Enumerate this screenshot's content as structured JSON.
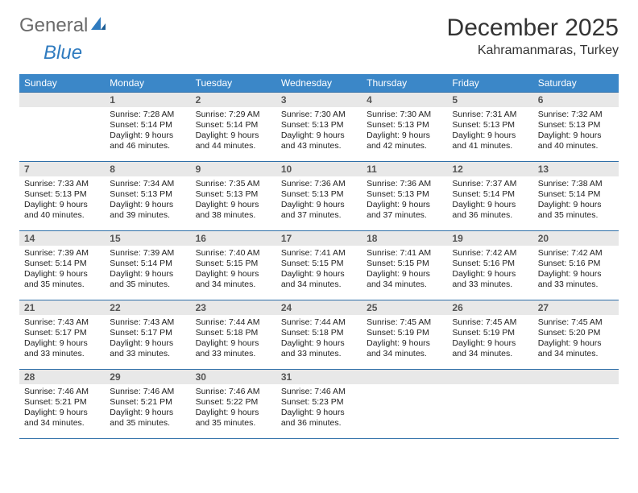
{
  "logo": {
    "general": "General",
    "blue": "Blue"
  },
  "title": "December 2025",
  "location": "Kahramanmaras, Turkey",
  "colors": {
    "header_bg": "#3b87c8",
    "header_text": "#ffffff",
    "daynum_bg": "#e8e8e8",
    "daynum_text": "#555555",
    "border": "#2f6fa8",
    "logo_blue": "#2f7bbf",
    "logo_gray": "#6b6b6b"
  },
  "weekdays": [
    "Sunday",
    "Monday",
    "Tuesday",
    "Wednesday",
    "Thursday",
    "Friday",
    "Saturday"
  ],
  "weeks": [
    [
      null,
      {
        "n": "1",
        "sr": "Sunrise: 7:28 AM",
        "ss": "Sunset: 5:14 PM",
        "dl": "Daylight: 9 hours and 46 minutes."
      },
      {
        "n": "2",
        "sr": "Sunrise: 7:29 AM",
        "ss": "Sunset: 5:14 PM",
        "dl": "Daylight: 9 hours and 44 minutes."
      },
      {
        "n": "3",
        "sr": "Sunrise: 7:30 AM",
        "ss": "Sunset: 5:13 PM",
        "dl": "Daylight: 9 hours and 43 minutes."
      },
      {
        "n": "4",
        "sr": "Sunrise: 7:30 AM",
        "ss": "Sunset: 5:13 PM",
        "dl": "Daylight: 9 hours and 42 minutes."
      },
      {
        "n": "5",
        "sr": "Sunrise: 7:31 AM",
        "ss": "Sunset: 5:13 PM",
        "dl": "Daylight: 9 hours and 41 minutes."
      },
      {
        "n": "6",
        "sr": "Sunrise: 7:32 AM",
        "ss": "Sunset: 5:13 PM",
        "dl": "Daylight: 9 hours and 40 minutes."
      }
    ],
    [
      {
        "n": "7",
        "sr": "Sunrise: 7:33 AM",
        "ss": "Sunset: 5:13 PM",
        "dl": "Daylight: 9 hours and 40 minutes."
      },
      {
        "n": "8",
        "sr": "Sunrise: 7:34 AM",
        "ss": "Sunset: 5:13 PM",
        "dl": "Daylight: 9 hours and 39 minutes."
      },
      {
        "n": "9",
        "sr": "Sunrise: 7:35 AM",
        "ss": "Sunset: 5:13 PM",
        "dl": "Daylight: 9 hours and 38 minutes."
      },
      {
        "n": "10",
        "sr": "Sunrise: 7:36 AM",
        "ss": "Sunset: 5:13 PM",
        "dl": "Daylight: 9 hours and 37 minutes."
      },
      {
        "n": "11",
        "sr": "Sunrise: 7:36 AM",
        "ss": "Sunset: 5:13 PM",
        "dl": "Daylight: 9 hours and 37 minutes."
      },
      {
        "n": "12",
        "sr": "Sunrise: 7:37 AM",
        "ss": "Sunset: 5:14 PM",
        "dl": "Daylight: 9 hours and 36 minutes."
      },
      {
        "n": "13",
        "sr": "Sunrise: 7:38 AM",
        "ss": "Sunset: 5:14 PM",
        "dl": "Daylight: 9 hours and 35 minutes."
      }
    ],
    [
      {
        "n": "14",
        "sr": "Sunrise: 7:39 AM",
        "ss": "Sunset: 5:14 PM",
        "dl": "Daylight: 9 hours and 35 minutes."
      },
      {
        "n": "15",
        "sr": "Sunrise: 7:39 AM",
        "ss": "Sunset: 5:14 PM",
        "dl": "Daylight: 9 hours and 35 minutes."
      },
      {
        "n": "16",
        "sr": "Sunrise: 7:40 AM",
        "ss": "Sunset: 5:15 PM",
        "dl": "Daylight: 9 hours and 34 minutes."
      },
      {
        "n": "17",
        "sr": "Sunrise: 7:41 AM",
        "ss": "Sunset: 5:15 PM",
        "dl": "Daylight: 9 hours and 34 minutes."
      },
      {
        "n": "18",
        "sr": "Sunrise: 7:41 AM",
        "ss": "Sunset: 5:15 PM",
        "dl": "Daylight: 9 hours and 34 minutes."
      },
      {
        "n": "19",
        "sr": "Sunrise: 7:42 AM",
        "ss": "Sunset: 5:16 PM",
        "dl": "Daylight: 9 hours and 33 minutes."
      },
      {
        "n": "20",
        "sr": "Sunrise: 7:42 AM",
        "ss": "Sunset: 5:16 PM",
        "dl": "Daylight: 9 hours and 33 minutes."
      }
    ],
    [
      {
        "n": "21",
        "sr": "Sunrise: 7:43 AM",
        "ss": "Sunset: 5:17 PM",
        "dl": "Daylight: 9 hours and 33 minutes."
      },
      {
        "n": "22",
        "sr": "Sunrise: 7:43 AM",
        "ss": "Sunset: 5:17 PM",
        "dl": "Daylight: 9 hours and 33 minutes."
      },
      {
        "n": "23",
        "sr": "Sunrise: 7:44 AM",
        "ss": "Sunset: 5:18 PM",
        "dl": "Daylight: 9 hours and 33 minutes."
      },
      {
        "n": "24",
        "sr": "Sunrise: 7:44 AM",
        "ss": "Sunset: 5:18 PM",
        "dl": "Daylight: 9 hours and 33 minutes."
      },
      {
        "n": "25",
        "sr": "Sunrise: 7:45 AM",
        "ss": "Sunset: 5:19 PM",
        "dl": "Daylight: 9 hours and 34 minutes."
      },
      {
        "n": "26",
        "sr": "Sunrise: 7:45 AM",
        "ss": "Sunset: 5:19 PM",
        "dl": "Daylight: 9 hours and 34 minutes."
      },
      {
        "n": "27",
        "sr": "Sunrise: 7:45 AM",
        "ss": "Sunset: 5:20 PM",
        "dl": "Daylight: 9 hours and 34 minutes."
      }
    ],
    [
      {
        "n": "28",
        "sr": "Sunrise: 7:46 AM",
        "ss": "Sunset: 5:21 PM",
        "dl": "Daylight: 9 hours and 34 minutes."
      },
      {
        "n": "29",
        "sr": "Sunrise: 7:46 AM",
        "ss": "Sunset: 5:21 PM",
        "dl": "Daylight: 9 hours and 35 minutes."
      },
      {
        "n": "30",
        "sr": "Sunrise: 7:46 AM",
        "ss": "Sunset: 5:22 PM",
        "dl": "Daylight: 9 hours and 35 minutes."
      },
      {
        "n": "31",
        "sr": "Sunrise: 7:46 AM",
        "ss": "Sunset: 5:23 PM",
        "dl": "Daylight: 9 hours and 36 minutes."
      },
      null,
      null,
      null
    ]
  ]
}
